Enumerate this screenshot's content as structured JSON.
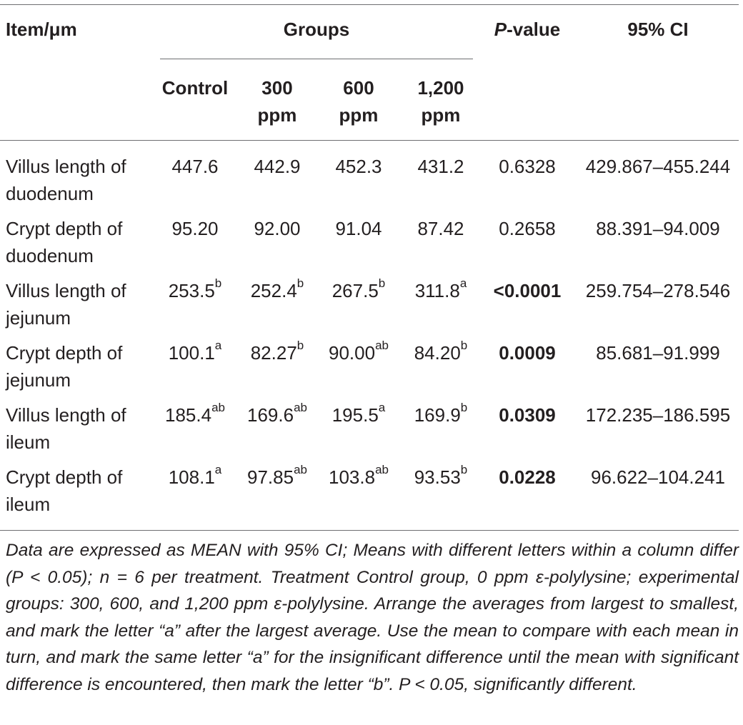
{
  "table": {
    "header": {
      "item": "Item/μm",
      "groups": "Groups",
      "p_value_italic": "P",
      "p_value_rest": "-value",
      "ci": "95% CI",
      "sub": [
        {
          "line1": "Control",
          "line2": ""
        },
        {
          "line1": "300",
          "line2": "ppm"
        },
        {
          "line1": "600",
          "line2": "ppm"
        },
        {
          "line1": "1,200",
          "line2": "ppm"
        }
      ]
    },
    "rows": [
      {
        "item_line1": "Villus length of",
        "item_line2": "duodenum",
        "cells": [
          {
            "v": "447.6",
            "s": ""
          },
          {
            "v": "442.9",
            "s": ""
          },
          {
            "v": "452.3",
            "s": ""
          },
          {
            "v": "431.2",
            "s": ""
          }
        ],
        "p": "0.6328",
        "p_bold": false,
        "ci": "429.867–455.244"
      },
      {
        "item_line1": "Crypt depth of",
        "item_line2": "duodenum",
        "cells": [
          {
            "v": "95.20",
            "s": ""
          },
          {
            "v": "92.00",
            "s": ""
          },
          {
            "v": "91.04",
            "s": ""
          },
          {
            "v": "87.42",
            "s": ""
          }
        ],
        "p": "0.2658",
        "p_bold": false,
        "ci": "88.391–94.009"
      },
      {
        "item_line1": "Villus length of",
        "item_line2": "jejunum",
        "cells": [
          {
            "v": "253.5",
            "s": "b"
          },
          {
            "v": "252.4",
            "s": "b"
          },
          {
            "v": "267.5",
            "s": "b"
          },
          {
            "v": "311.8",
            "s": "a"
          }
        ],
        "p": "<0.0001",
        "p_bold": true,
        "ci": "259.754–278.546"
      },
      {
        "item_line1": "Crypt depth of",
        "item_line2": "jejunum",
        "cells": [
          {
            "v": "100.1",
            "s": "a"
          },
          {
            "v": "82.27",
            "s": "b"
          },
          {
            "v": "90.00",
            "s": "ab"
          },
          {
            "v": "84.20",
            "s": "b"
          }
        ],
        "p": "0.0009",
        "p_bold": true,
        "ci": "85.681–91.999"
      },
      {
        "item_line1": "Villus length of",
        "item_line2": "ileum",
        "cells": [
          {
            "v": "185.4",
            "s": "ab"
          },
          {
            "v": "169.6",
            "s": "ab"
          },
          {
            "v": "195.5",
            "s": "a"
          },
          {
            "v": "169.9",
            "s": "b"
          }
        ],
        "p": "0.0309",
        "p_bold": true,
        "ci": "172.235–186.595"
      },
      {
        "item_line1": "Crypt depth of",
        "item_line2": "ileum",
        "cells": [
          {
            "v": "108.1",
            "s": "a"
          },
          {
            "v": "97.85",
            "s": "ab"
          },
          {
            "v": "103.8",
            "s": "ab"
          },
          {
            "v": "93.53",
            "s": "b"
          }
        ],
        "p": "0.0228",
        "p_bold": true,
        "ci": "96.622–104.241"
      }
    ],
    "footnote": "Data are expressed as MEAN with 95% CI; Means with different letters within a column differ (P < 0.05); n = 6 per treatment. Treatment Control group, 0 ppm ε-polylysine; experimental groups: 300, 600, and 1,200 ppm ε-polylysine. Arrange the averages from largest to smallest, and mark the letter “a” after the largest average. Use the mean to compare with each mean in turn, and mark the same letter “a” for the insignificant difference until the mean with significant difference is encountered, then mark the letter “b”. P < 0.05, significantly different."
  }
}
